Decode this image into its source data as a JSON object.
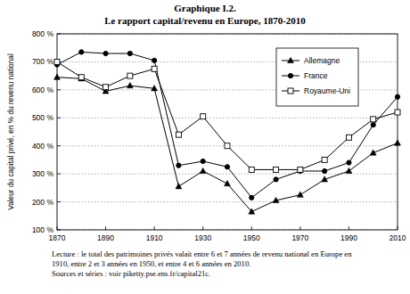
{
  "chart_data": {
    "type": "line",
    "title": "Graphique I.2.",
    "subtitle": "Le rapport capital/revenu en Europe, 1870-2010",
    "y_label": "Valeur du capital privé, en % du revenu national",
    "x": [
      1870,
      1880,
      1890,
      1900,
      1910,
      1920,
      1930,
      1940,
      1950,
      1960,
      1970,
      1980,
      1990,
      2000,
      2010
    ],
    "series": [
      {
        "name": "Allemagne",
        "color": "#000000",
        "marker": "triangle",
        "line_style": "solid",
        "values": [
          645,
          640,
          595,
          615,
          605,
          255,
          310,
          265,
          165,
          205,
          225,
          280,
          310,
          375,
          410
        ]
      },
      {
        "name": "France",
        "color": "#000000",
        "marker": "circle",
        "line_style": "solid",
        "values": [
          690,
          735,
          730,
          730,
          705,
          330,
          345,
          325,
          215,
          280,
          310,
          310,
          340,
          475,
          575
        ]
      },
      {
        "name": "Royaume-Uni",
        "color": "#000000",
        "marker": "square-open",
        "line_style": "solid",
        "values": [
          700,
          645,
          610,
          650,
          675,
          440,
          505,
          400,
          315,
          315,
          315,
          350,
          430,
          495,
          520
        ]
      }
    ],
    "xlim": [
      1870,
      2010
    ],
    "xticks": [
      1870,
      1890,
      1910,
      1930,
      1950,
      1970,
      1990,
      2010
    ],
    "ylim": [
      100,
      800
    ],
    "yticks": [
      {
        "value": 100,
        "label": "100 %"
      },
      {
        "value": 200,
        "label": "200 %"
      },
      {
        "value": 300,
        "label": "300 %"
      },
      {
        "value": 400,
        "label": "400 %"
      },
      {
        "value": 500,
        "label": "500 %"
      },
      {
        "value": 600,
        "label": "600 %"
      },
      {
        "value": 700,
        "label": "700 %"
      },
      {
        "value": 800,
        "label": "800 %"
      }
    ],
    "grid": true,
    "legend": "upper right",
    "notes": [
      "Lecture : le total des patrimoines privés valait entre 6 et 7 années de revenu national en Europe en",
      "1910, entre 2 et 3 années en 1950, et entre 4 et 6 années en 2010.",
      "Sources et séries : voir piketty.pse.ens.fr/capital21c."
    ]
  }
}
